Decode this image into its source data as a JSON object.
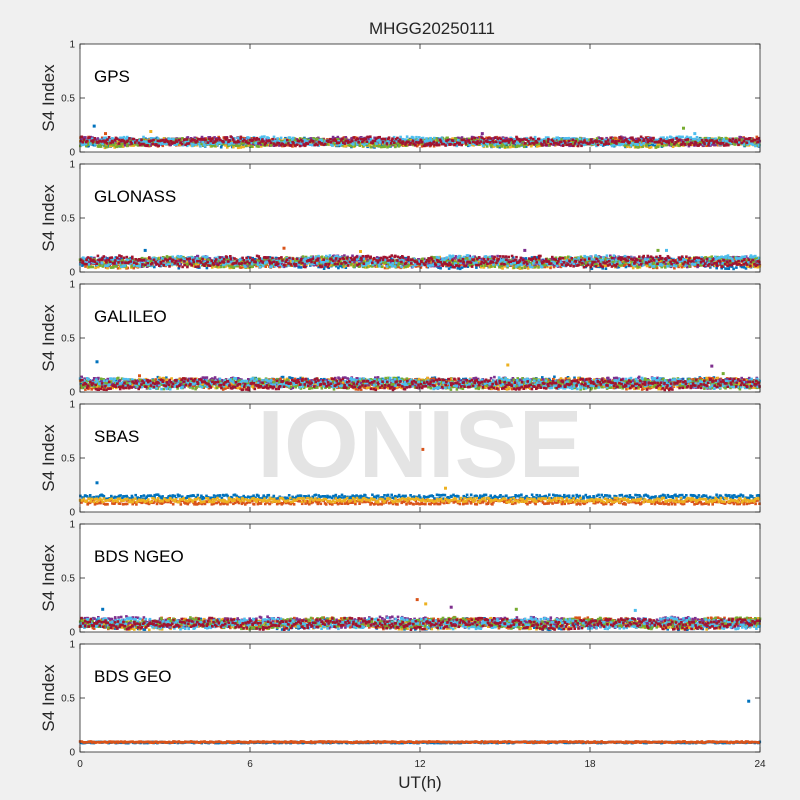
{
  "figure": {
    "title": "MHGG20250111",
    "xlabel": "UT(h)",
    "watermark": "IONISE",
    "background": "#f0f0f0",
    "axes_background": "#ffffff"
  },
  "chart_data": {
    "type": "scatter",
    "shared_x": {
      "label": "UT(h)",
      "range": [
        0,
        24
      ],
      "ticks": [
        0,
        6,
        12,
        18,
        24
      ],
      "tick_labels": [
        "0",
        "6",
        "12",
        "18",
        "24"
      ]
    },
    "palette": [
      "#0072bd",
      "#d95319",
      "#edb120",
      "#7e2f8e",
      "#77ac30",
      "#4dbeee",
      "#a2142f"
    ],
    "panels": [
      {
        "label": "GPS",
        "ylabel": "S4 Index",
        "ylim": [
          0,
          1
        ],
        "yticks": [
          0,
          0.5,
          1
        ],
        "ytick_labels": [
          "0",
          "0.5",
          "1"
        ],
        "n_series": 7,
        "base_s4": 0.09,
        "noise": 0.03,
        "spikes": [
          [
            0.5,
            0.24
          ],
          [
            0.9,
            0.17
          ],
          [
            2.5,
            0.19
          ],
          [
            14.2,
            0.17
          ],
          [
            21.3,
            0.22
          ],
          [
            21.7,
            0.17
          ]
        ]
      },
      {
        "label": "GLONASS",
        "ylabel": "S4 Index",
        "ylim": [
          0,
          1
        ],
        "yticks": [
          0,
          0.5,
          1
        ],
        "ytick_labels": [
          "0",
          "0.5",
          "1"
        ],
        "n_series": 7,
        "base_s4": 0.09,
        "noise": 0.04,
        "spikes": [
          [
            2.3,
            0.2
          ],
          [
            7.2,
            0.22
          ],
          [
            9.9,
            0.19
          ],
          [
            15.7,
            0.2
          ],
          [
            20.4,
            0.2
          ],
          [
            20.7,
            0.2
          ]
        ]
      },
      {
        "label": "GALILEO",
        "ylabel": "S4 Index",
        "ylim": [
          0,
          1
        ],
        "yticks": [
          0,
          0.5,
          1
        ],
        "ytick_labels": [
          "0",
          "0.5",
          "1"
        ],
        "n_series": 7,
        "base_s4": 0.08,
        "noise": 0.04,
        "spikes": [
          [
            0.6,
            0.28
          ],
          [
            2.1,
            0.15
          ],
          [
            15.1,
            0.25
          ],
          [
            22.3,
            0.24
          ],
          [
            22.7,
            0.17
          ]
        ]
      },
      {
        "label": "SBAS",
        "ylabel": "S4 Index",
        "ylim": [
          0,
          1
        ],
        "yticks": [
          0,
          0.5,
          1
        ],
        "ytick_labels": [
          "0",
          "0.5",
          "1"
        ],
        "n_series": 3,
        "base_s4": 0.13,
        "noise": 0.02,
        "spikes": [
          [
            0.6,
            0.27
          ],
          [
            12.1,
            0.58
          ],
          [
            12.9,
            0.22
          ]
        ]
      },
      {
        "label": "BDS NGEO",
        "ylabel": "S4 Index",
        "ylim": [
          0,
          1
        ],
        "yticks": [
          0,
          0.5,
          1
        ],
        "ytick_labels": [
          "0",
          "0.5",
          "1"
        ],
        "n_series": 7,
        "base_s4": 0.08,
        "noise": 0.04,
        "spikes": [
          [
            0.8,
            0.21
          ],
          [
            11.9,
            0.3
          ],
          [
            12.2,
            0.26
          ],
          [
            13.1,
            0.23
          ],
          [
            15.4,
            0.21
          ],
          [
            19.6,
            0.2
          ]
        ]
      },
      {
        "label": "BDS GEO",
        "ylabel": "S4 Index",
        "ylim": [
          0,
          1
        ],
        "yticks": [
          0,
          0.5,
          1
        ],
        "ytick_labels": [
          "0",
          "0.5",
          "1"
        ],
        "n_series": 2,
        "base_s4": 0.09,
        "noise": 0.006,
        "spikes": [
          [
            23.6,
            0.47
          ]
        ]
      }
    ]
  }
}
